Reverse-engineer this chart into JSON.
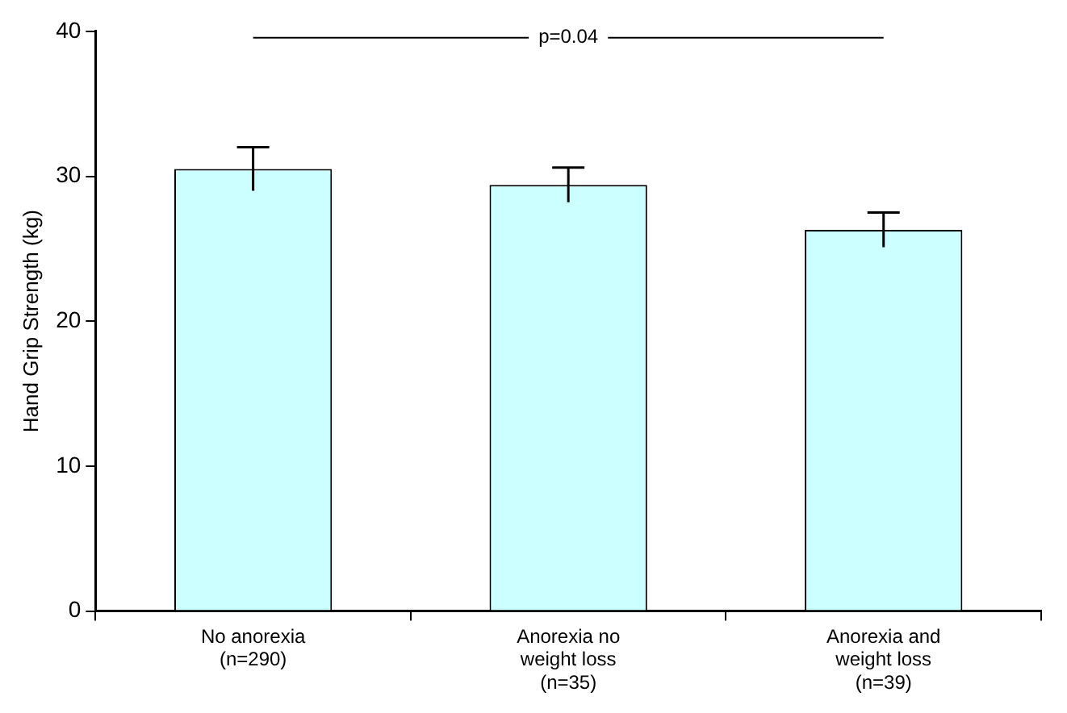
{
  "chart_data": {
    "type": "bar",
    "ylabel": "Hand Grip Strength (kg)",
    "categories": [
      "No anorexia (n=290)",
      "Anorexia no weight loss (n=35)",
      "Anorexia and weight loss (n=39)"
    ],
    "values": [
      30.5,
      29.4,
      26.3
    ],
    "errors": [
      1.5,
      1.2,
      1.2
    ],
    "color": "#ccffff",
    "ylim": [
      0,
      40
    ],
    "yticks": [
      0,
      10,
      20,
      30,
      40
    ],
    "grid": false,
    "legend": false,
    "annotations": [
      "p=0.04"
    ]
  }
}
